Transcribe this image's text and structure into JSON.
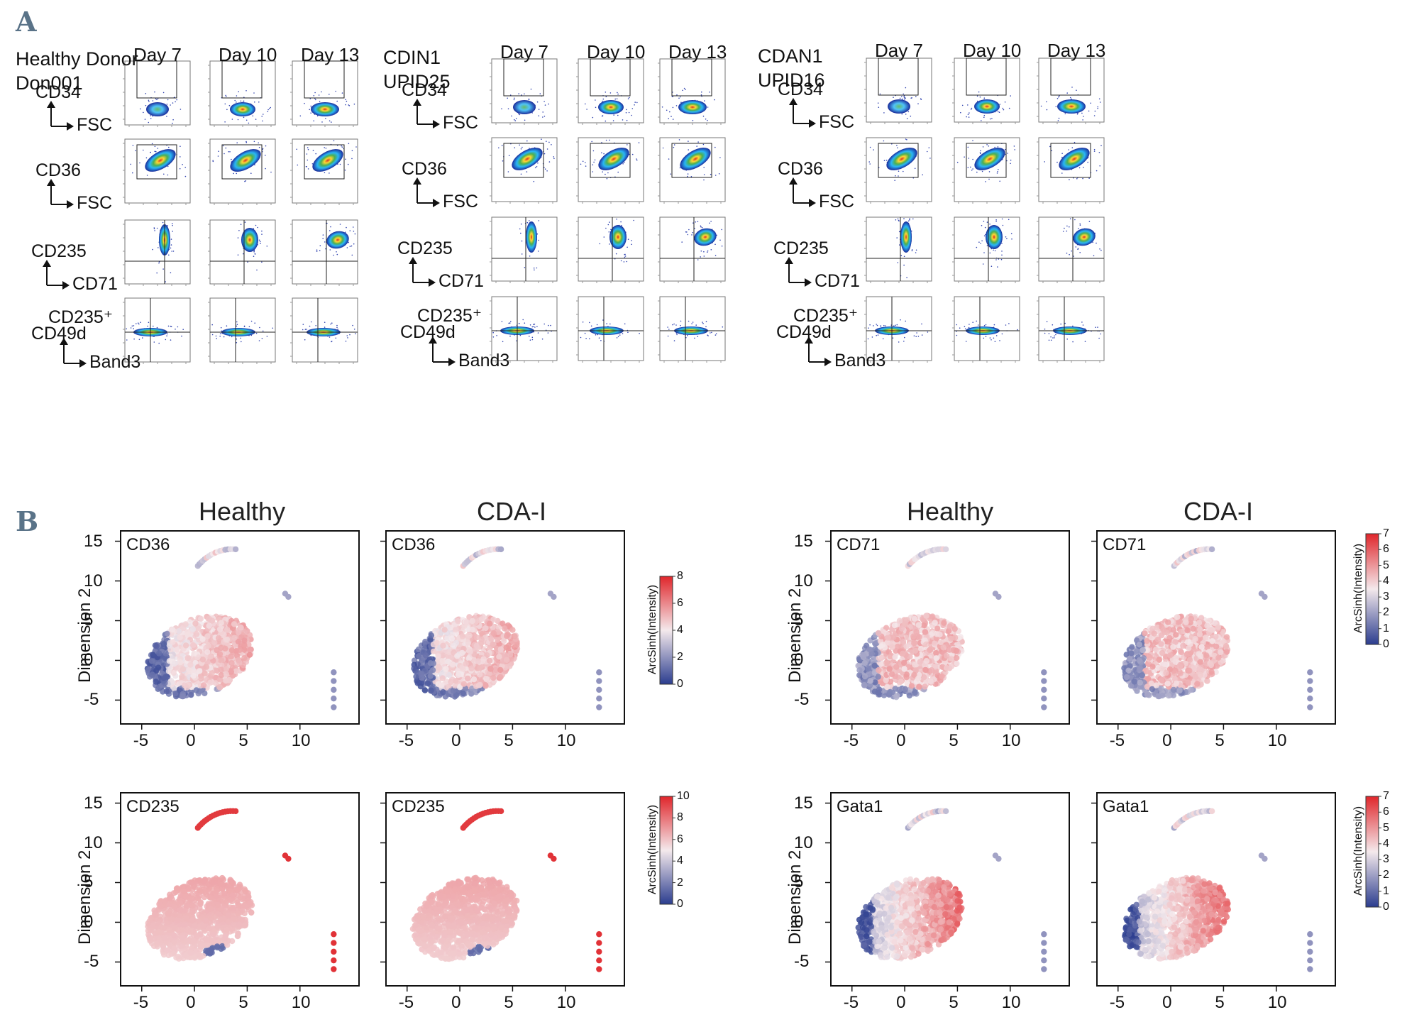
{
  "panelA": {
    "letter": "A",
    "groups": [
      {
        "title_line1": "Healthy Donor",
        "title_line2": "Don001"
      },
      {
        "title_line1": "CDIN1",
        "title_line2": "UPID25"
      },
      {
        "title_line1": "CDAN1",
        "title_line2": "UPID16"
      }
    ],
    "days": [
      "Day 7",
      "Day 10",
      "Day 13"
    ],
    "rows": [
      {
        "y": "CD34",
        "x": "FSC",
        "y_line2": ""
      },
      {
        "y": "CD36",
        "x": "FSC",
        "y_line2": ""
      },
      {
        "y": "CD235",
        "x": "CD71",
        "y_line2": ""
      },
      {
        "y": "CD235⁺",
        "x": "Band3",
        "y_line2": "CD49d"
      }
    ]
  },
  "panelB": {
    "letter": "B",
    "subtitles": [
      "Healthy",
      "CDA-I",
      "Healthy",
      "CDA-I"
    ],
    "y_axis_label": "Dimension 2",
    "x_ticks": [
      "-5",
      "0",
      "5",
      "10"
    ],
    "y_ticks": [
      "15",
      "10",
      "5",
      "0",
      "-5"
    ],
    "colorbar_label": "ArcSinh(Intensity)",
    "markers": [
      "CD36",
      "CD71",
      "CD235",
      "Gata1"
    ],
    "colorbars": [
      {
        "marker": "CD36",
        "ticks": [
          "8",
          "6",
          "4",
          "2",
          "0"
        ]
      },
      {
        "marker": "CD71",
        "ticks": [
          "7",
          "6",
          "5",
          "4",
          "3",
          "2",
          "1",
          "0"
        ]
      },
      {
        "marker": "CD235",
        "ticks": [
          "10",
          "8",
          "6",
          "4",
          "2",
          "0"
        ]
      },
      {
        "marker": "Gata1",
        "ticks": [
          "7",
          "6",
          "5",
          "4",
          "3",
          "2",
          "1",
          "0"
        ]
      }
    ],
    "colors": {
      "high": "#e0262b",
      "mid": "#f4e9ec",
      "low": "#2b3d8f"
    }
  }
}
